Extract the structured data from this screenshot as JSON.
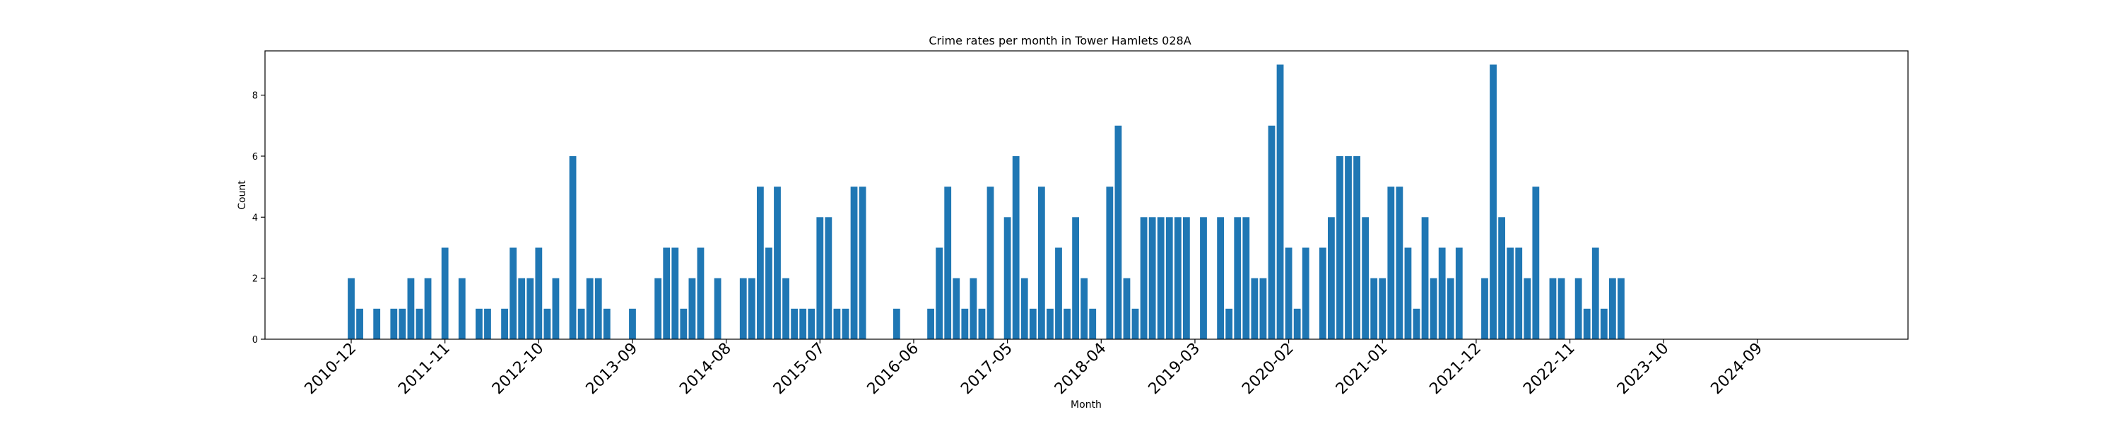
{
  "chart_data": {
    "type": "bar",
    "title": "Crime rates per month in Tower Hamlets 028A",
    "xlabel": "Month",
    "ylabel": "Count",
    "ylim": [
      0,
      9.45
    ],
    "yticks": [
      0,
      2,
      4,
      6,
      8
    ],
    "xticks": [
      "2010-12",
      "2011-11",
      "2012-10",
      "2013-09",
      "2014-08",
      "2015-07",
      "2016-06",
      "2017-05",
      "2018-04",
      "2019-03",
      "2020-02",
      "2021-01",
      "2021-12",
      "2022-11",
      "2023-10",
      "2024-09"
    ],
    "grid": false,
    "legend": "none",
    "color": "#1f77b4",
    "start_month": "2010-12",
    "values": [
      2,
      1,
      0,
      1,
      0,
      1,
      1,
      2,
      1,
      2,
      0,
      3,
      0,
      2,
      0,
      1,
      1,
      0,
      1,
      3,
      2,
      2,
      3,
      1,
      2,
      0,
      6,
      1,
      2,
      2,
      1,
      0,
      0,
      1,
      0,
      0,
      2,
      3,
      3,
      1,
      2,
      3,
      0,
      2,
      0,
      0,
      2,
      2,
      5,
      3,
      5,
      2,
      1,
      1,
      1,
      4,
      4,
      1,
      1,
      5,
      5,
      0,
      0,
      0,
      1,
      0,
      0,
      0,
      1,
      3,
      5,
      2,
      1,
      2,
      1,
      5,
      0,
      4,
      6,
      2,
      1,
      5,
      1,
      3,
      1,
      4,
      2,
      1,
      0,
      5,
      7,
      2,
      1,
      4,
      4,
      4,
      4,
      4,
      4,
      0,
      4,
      0,
      4,
      1,
      4,
      4,
      2,
      2,
      7,
      9,
      3,
      1,
      3,
      0,
      3,
      4,
      6,
      6,
      6,
      4,
      2,
      2,
      5,
      5,
      3,
      1,
      4,
      2,
      3,
      2,
      3,
      0,
      0,
      2,
      9,
      4,
      3,
      3,
      2,
      5,
      0,
      2,
      2,
      0,
      2,
      1,
      3,
      1,
      2,
      2
    ]
  }
}
